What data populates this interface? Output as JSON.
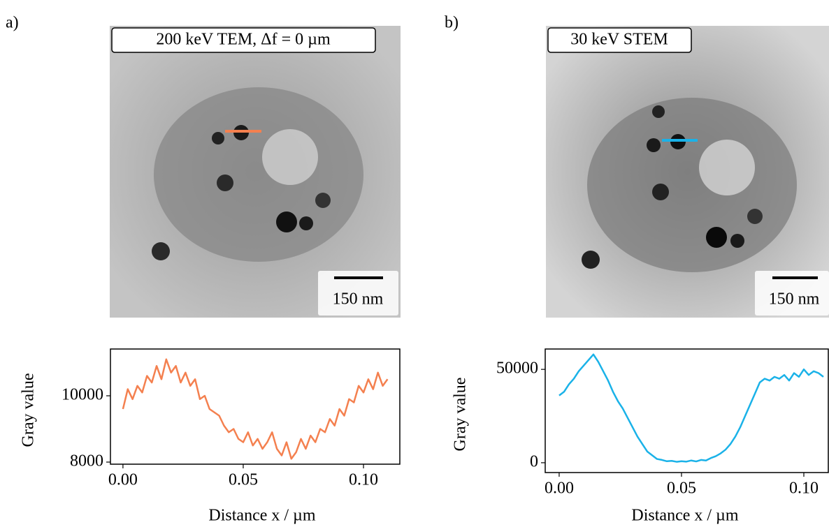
{
  "panels": [
    {
      "label": "a)",
      "image_label": "200 keV TEM, Δf = 0 µm",
      "scale_bar": "150 nm"
    },
    {
      "label": "b)",
      "image_label": "30 keV STEM",
      "scale_bar": "150 nm"
    }
  ],
  "chart_data": [
    {
      "type": "line",
      "color": "#f4804f",
      "x": [
        0,
        0.002,
        0.004,
        0.006,
        0.008,
        0.01,
        0.012,
        0.014,
        0.016,
        0.018,
        0.02,
        0.022,
        0.024,
        0.026,
        0.028,
        0.03,
        0.032,
        0.034,
        0.036,
        0.038,
        0.04,
        0.042,
        0.044,
        0.046,
        0.048,
        0.05,
        0.052,
        0.054,
        0.056,
        0.058,
        0.06,
        0.062,
        0.064,
        0.066,
        0.068,
        0.07,
        0.072,
        0.074,
        0.076,
        0.078,
        0.08,
        0.082,
        0.084,
        0.086,
        0.088,
        0.09,
        0.092,
        0.094,
        0.096,
        0.098,
        0.1,
        0.102,
        0.104,
        0.106,
        0.108,
        0.11
      ],
      "values": [
        9600,
        10200,
        9900,
        10300,
        10100,
        10600,
        10400,
        10900,
        10500,
        11100,
        10700,
        10900,
        10400,
        10700,
        10300,
        10500,
        9900,
        10000,
        9600,
        9500,
        9400,
        9100,
        8900,
        9000,
        8700,
        8600,
        8900,
        8500,
        8700,
        8400,
        8600,
        8900,
        8400,
        8200,
        8600,
        8100,
        8300,
        8700,
        8400,
        8800,
        8600,
        9000,
        8900,
        9300,
        9100,
        9600,
        9400,
        9900,
        9800,
        10300,
        10100,
        10500,
        10200,
        10700,
        10300,
        10500
      ],
      "xlim": [
        -0.0052,
        0.1151
      ],
      "ylim": [
        7937,
        11411
      ],
      "xticks": [
        {
          "value": 0,
          "label": "0.00"
        },
        0.05,
        {
          "value": 0.1,
          "label": "0.10"
        }
      ],
      "yticks": [
        8000,
        10000
      ],
      "xlabel": "Distance x / µm",
      "ylabel": "Gray value"
    },
    {
      "type": "line",
      "color": "#1ab2e8",
      "x": [
        0,
        0.002,
        0.004,
        0.006,
        0.008,
        0.01,
        0.012,
        0.014,
        0.016,
        0.018,
        0.02,
        0.022,
        0.024,
        0.026,
        0.028,
        0.03,
        0.032,
        0.034,
        0.036,
        0.038,
        0.04,
        0.042,
        0.044,
        0.046,
        0.048,
        0.05,
        0.052,
        0.054,
        0.056,
        0.058,
        0.06,
        0.062,
        0.064,
        0.066,
        0.068,
        0.07,
        0.072,
        0.074,
        0.076,
        0.078,
        0.08,
        0.082,
        0.084,
        0.086,
        0.088,
        0.09,
        0.092,
        0.094,
        0.096,
        0.098,
        0.1,
        0.102,
        0.104,
        0.106,
        0.108
      ],
      "values": [
        36000,
        38000,
        42000,
        45000,
        49000,
        52000,
        55000,
        58000,
        54000,
        49000,
        44000,
        38000,
        33000,
        29000,
        24000,
        19000,
        14000,
        10000,
        6000,
        4000,
        2000,
        1500,
        800,
        1000,
        500,
        800,
        600,
        1200,
        700,
        1500,
        1200,
        2500,
        3500,
        5000,
        7000,
        10000,
        14000,
        19000,
        25000,
        31000,
        37000,
        43000,
        45000,
        44000,
        46000,
        45000,
        47000,
        44000,
        48000,
        46000,
        50000,
        47000,
        49000,
        48000,
        46000
      ],
      "xlim": [
        -0.0057,
        0.11
      ],
      "ylim": [
        -5263,
        60902
      ],
      "xticks": [
        {
          "value": 0,
          "label": "0.00"
        },
        0.05,
        {
          "value": 0.1,
          "label": "0.10"
        }
      ],
      "yticks": [
        0,
        50000
      ],
      "xlabel": "Distance x / µm",
      "ylabel": "Gray value"
    }
  ]
}
